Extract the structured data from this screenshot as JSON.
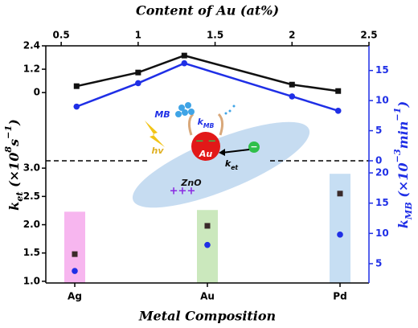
{
  "chart_data": [
    {
      "type": "line",
      "xlabel": "Content of Au (at%)",
      "ylabel": [
        "k",
        "et",
        " (×10",
        "8",
        "s",
        "−1",
        ")"
      ],
      "y2label": [
        "k",
        "MB",
        " (×10",
        "−3",
        "min",
        "−1",
        ")"
      ],
      "x": [
        0.6,
        1.0,
        1.3,
        2.0,
        2.3
      ],
      "xlim": [
        0.4,
        2.5
      ],
      "xticks": [
        0.5,
        1.0,
        1.5,
        2.0,
        2.5
      ],
      "ylim": [
        -3.5,
        2.4
      ],
      "yticks": [
        0,
        1.2,
        2.4
      ],
      "y2lim": [
        0,
        19.1
      ],
      "y2ticks": [
        0,
        5,
        10,
        15
      ],
      "series": [
        {
          "color": "#111111",
          "marker": "square",
          "values": [
            0.33,
            1.03,
            1.9,
            0.41,
            0.08
          ]
        },
        {
          "color": "#1f2fe6",
          "marker": "circle",
          "axis": "y2",
          "values": [
            9.0,
            12.9,
            16.2,
            10.7,
            8.3
          ]
        }
      ]
    },
    {
      "type": "scatter",
      "xlabel": "Metal Composition",
      "categories": [
        "Ag",
        "Au",
        "Pd"
      ],
      "ylim": [
        0.97,
        3.13
      ],
      "yticks": [
        {
          "value": 1,
          "label": "1.0"
        },
        1.5,
        {
          "value": 2,
          "label": "2.0"
        },
        2.5,
        {
          "value": 3,
          "label": "3.0"
        }
      ],
      "y2lim": [
        1.81,
        22.0
      ],
      "y2ticks": [
        5,
        10,
        15,
        20
      ],
      "bars": {
        "colors": [
          "#f7b6ef",
          "#cbe8bd",
          "#c6def3"
        ],
        "values": [
          2.23,
          2.26,
          2.9
        ]
      },
      "series": [
        {
          "color": "#3a2a2a",
          "marker": "square",
          "values": [
            1.48,
            1.98,
            2.55
          ]
        },
        {
          "color": "#1f2fe6",
          "marker": "circle",
          "axis": "y2",
          "values": [
            3.8,
            8.1,
            9.8
          ]
        }
      ]
    }
  ],
  "inset": {
    "mb": "MB",
    "k_mb": [
      "k",
      "MB"
    ],
    "au": "Au",
    "k_et": [
      "k",
      "et"
    ],
    "hv": "hv",
    "zno": "ZnO",
    "holes": "+++",
    "electrons": "− −",
    "electron": "−"
  }
}
